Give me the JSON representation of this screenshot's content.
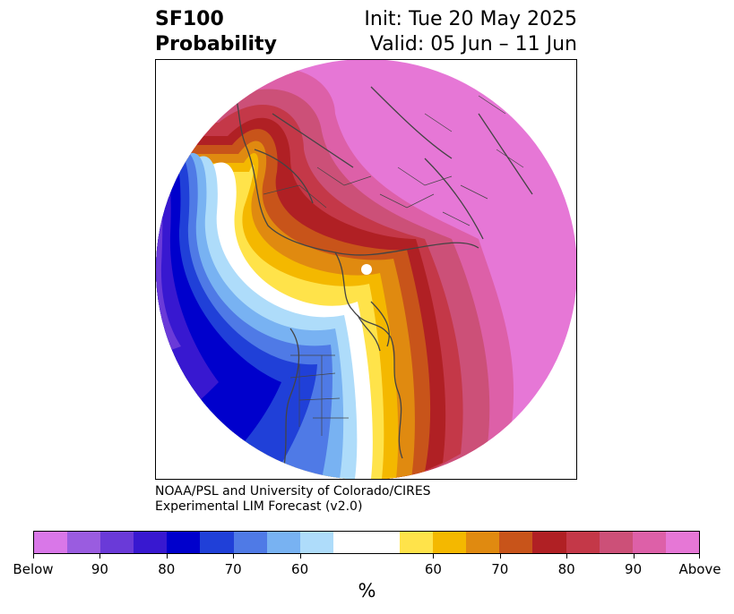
{
  "header": {
    "variable": "SF100",
    "product": "Probability",
    "init": "Init: Tue 20 May 2025",
    "valid": "Valid: 05 Jun – 11 Jun"
  },
  "credits": {
    "line1": "NOAA/PSL and University of Colorado/CIRES",
    "line2": "Experimental LIM Forecast (v2.0)"
  },
  "colorbar": {
    "colors": [
      "#d977e8",
      "#9a5ce0",
      "#6a3ad8",
      "#3818d0",
      "#0000cc",
      "#2040d8",
      "#4f7ae6",
      "#78b2f2",
      "#aedcfa",
      "#ffffff",
      "#ffffff",
      "#ffe34a",
      "#f4b800",
      "#e08a10",
      "#c8541a",
      "#b02024",
      "#c43848",
      "#cc5078",
      "#dd60a8",
      "#e677d6"
    ],
    "tick_labels": [
      "Below",
      "90",
      "80",
      "70",
      "60",
      "60",
      "70",
      "80",
      "90",
      "Above"
    ],
    "unit": "%"
  },
  "map": {
    "region": "Northern Hemisphere polar stereographic",
    "colors": {
      "above_pink": "#e677d6",
      "magenta": "#dd60a8",
      "rose": "#cc5078",
      "crimson": "#c43848",
      "red": "#b02024",
      "orange_red": "#c8541a",
      "orange": "#e08a10",
      "amber": "#f4b800",
      "yellow": "#ffe34a",
      "light_blue": "#aedcfa",
      "sky_blue": "#78b2f2",
      "cornflower": "#4f7ae6",
      "royal_blue": "#2040d8",
      "deep_blue": "#0000cc",
      "indigo": "#3818d0",
      "violet": "#6a3ad8",
      "border": "#444444"
    }
  }
}
